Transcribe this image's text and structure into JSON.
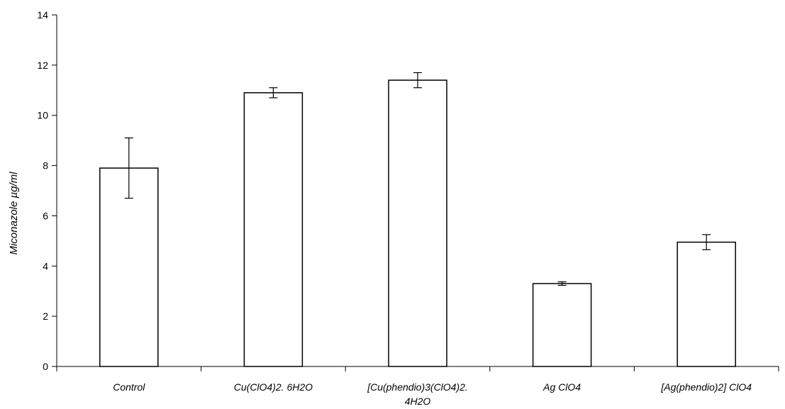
{
  "chart_data": {
    "type": "bar",
    "title": "",
    "xlabel": "",
    "ylabel": "Miconazole µg/ml",
    "ylim": [
      0,
      14
    ],
    "yticks": [
      0,
      2,
      4,
      6,
      8,
      10,
      12,
      14
    ],
    "grid": false,
    "legend": "none",
    "categories": [
      "Control",
      "Cu(ClO4)2. 6H2O",
      "[Cu(phendio)3(ClO4)2. 4H2O",
      "Ag ClO4",
      "[Ag(phendio)2] ClO4"
    ],
    "category_lines": [
      [
        "Control"
      ],
      [
        "Cu(ClO4)2. 6H2O"
      ],
      [
        "[Cu(phendio)3(ClO4)2.",
        "4H2O"
      ],
      [
        "Ag ClO4"
      ],
      [
        "[Ag(phendio)2] ClO4"
      ]
    ],
    "values": [
      7.9,
      10.9,
      11.4,
      3.3,
      4.95
    ],
    "error_bars": [
      1.2,
      0.2,
      0.3,
      0.07,
      0.3
    ],
    "colors": {
      "bar_fill": "#ffffff",
      "bar_stroke": "#000000",
      "axis": "#000000"
    }
  }
}
